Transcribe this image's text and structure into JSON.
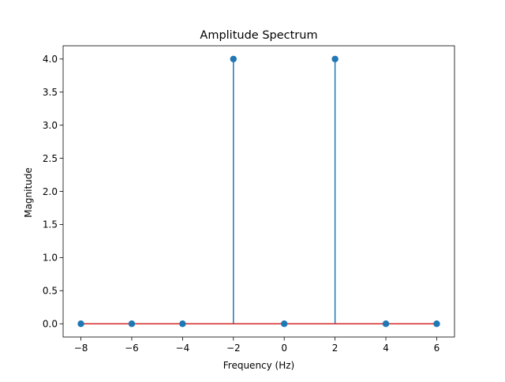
{
  "chart_data": {
    "type": "stem",
    "title": "Amplitude Spectrum",
    "xlabel": "Frequency (Hz)",
    "ylabel": "Magnitude",
    "xlim": [
      -8.7,
      6.7
    ],
    "ylim": [
      -0.2,
      4.2
    ],
    "xticks": [
      -8,
      -6,
      -4,
      -2,
      0,
      2,
      4,
      6
    ],
    "yticks": [
      0.0,
      0.5,
      1.0,
      1.5,
      2.0,
      2.5,
      3.0,
      3.5,
      4.0
    ],
    "xtick_labels": [
      "−8",
      "−6",
      "−4",
      "−2",
      "0",
      "2",
      "4",
      "6"
    ],
    "ytick_labels": [
      "0.0",
      "0.5",
      "1.0",
      "1.5",
      "2.0",
      "2.5",
      "3.0",
      "3.5",
      "4.0"
    ],
    "x": [
      -8,
      -6,
      -4,
      -2,
      0,
      2,
      4,
      6
    ],
    "y": [
      0,
      0,
      0,
      4,
      0,
      4,
      0,
      0
    ],
    "grid": false,
    "colors": {
      "stem": "#1f77b4",
      "marker": "#1f77b4",
      "baseline": "#d62728",
      "axes": "#000000"
    }
  }
}
